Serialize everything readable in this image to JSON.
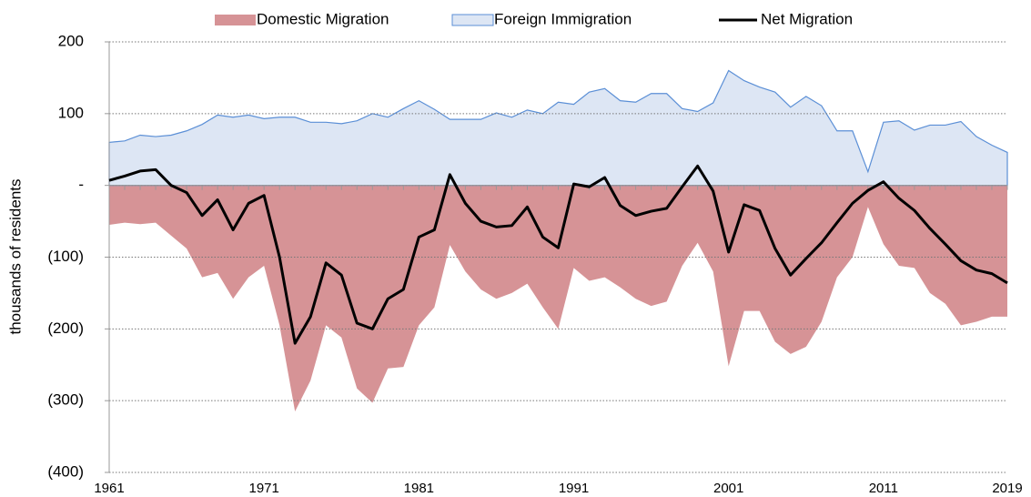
{
  "chart_data": {
    "type": "area",
    "y_label": "thousands of residents",
    "x": [
      1961,
      1962,
      1963,
      1964,
      1965,
      1966,
      1967,
      1968,
      1969,
      1970,
      1971,
      1972,
      1973,
      1974,
      1975,
      1976,
      1977,
      1978,
      1979,
      1980,
      1981,
      1982,
      1983,
      1984,
      1985,
      1986,
      1987,
      1988,
      1989,
      1990,
      1991,
      1992,
      1993,
      1994,
      1995,
      1996,
      1997,
      1998,
      1999,
      2000,
      2001,
      2002,
      2003,
      2004,
      2005,
      2006,
      2007,
      2008,
      2009,
      2010,
      2011,
      2012,
      2013,
      2014,
      2015,
      2016,
      2017,
      2018,
      2019
    ],
    "xlim": [
      1961,
      2019
    ],
    "xticks": [
      1961,
      1971,
      1981,
      1991,
      2001,
      2011,
      2019
    ],
    "ylim": [
      -400,
      200
    ],
    "yticks": [
      200,
      100,
      {
        "value": 0,
        "label": "-"
      },
      {
        "value": -100,
        "label": "(100)"
      },
      {
        "value": -200,
        "label": "(200)"
      },
      {
        "value": -300,
        "label": "(300)"
      },
      {
        "value": -400,
        "label": "(400)"
      }
    ],
    "grid": true,
    "legend": "top",
    "series": [
      {
        "name": "Domestic Migration",
        "type": "area",
        "color": "#d69396",
        "values": [
          -55,
          -52,
          -54,
          -52,
          -70,
          -88,
          -128,
          -122,
          -158,
          -128,
          -112,
          -195,
          -315,
          -272,
          -195,
          -212,
          -283,
          -303,
          -255,
          -253,
          -195,
          -170,
          -83,
          -120,
          -145,
          -158,
          -150,
          -137,
          -170,
          -200,
          -115,
          -133,
          -128,
          -142,
          -158,
          -168,
          -162,
          -112,
          -80,
          -120,
          -252,
          -175,
          -175,
          -218,
          -235,
          -225,
          -190,
          -128,
          -100,
          -30,
          -82,
          -112,
          -115,
          -150,
          -165,
          -195,
          -190,
          -183,
          -183
        ]
      },
      {
        "name": "Foreign Immigration",
        "type": "area",
        "color": "#dde6f4",
        "edge": "#5b8fd6",
        "values": [
          60,
          62,
          70,
          68,
          70,
          76,
          85,
          98,
          95,
          98,
          93,
          95,
          95,
          88,
          88,
          86,
          90,
          100,
          95,
          107,
          118,
          106,
          92,
          92,
          92,
          101,
          95,
          105,
          100,
          116,
          113,
          130,
          135,
          118,
          116,
          128,
          128,
          107,
          103,
          115,
          160,
          146,
          137,
          130,
          109,
          124,
          111,
          76,
          76,
          19,
          88,
          90,
          77,
          84,
          84,
          89,
          68,
          56,
          46
        ]
      },
      {
        "name": "Net Migration",
        "type": "line",
        "color": "#000000",
        "values": [
          7,
          13,
          20,
          22,
          0,
          -10,
          -42,
          -20,
          -62,
          -25,
          -14,
          -100,
          -220,
          -183,
          -108,
          -125,
          -192,
          -200,
          -158,
          -145,
          -72,
          -62,
          15,
          -25,
          -50,
          -58,
          -56,
          -30,
          -72,
          -87,
          2,
          -2,
          11,
          -28,
          -42,
          -36,
          -32,
          -2,
          27,
          -8,
          -93,
          -27,
          -35,
          -88,
          -125,
          -102,
          -80,
          -52,
          -25,
          -7,
          5,
          -18,
          -35,
          -60,
          -82,
          -105,
          -118,
          -123,
          -136
        ]
      }
    ]
  }
}
